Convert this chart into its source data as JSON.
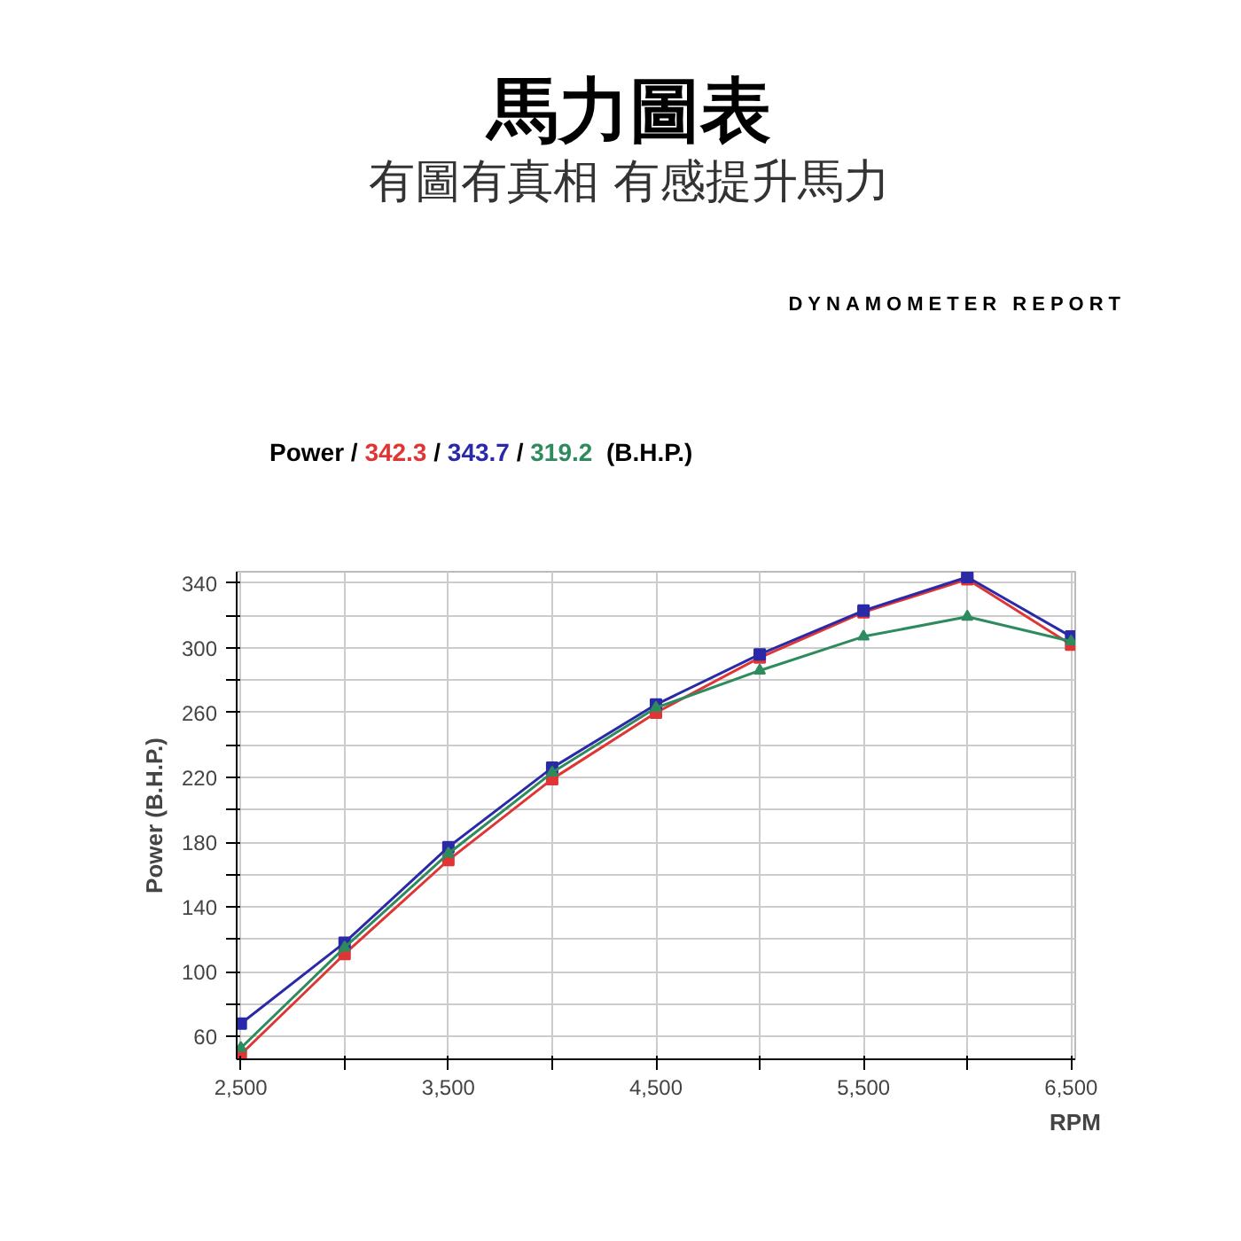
{
  "chart_data": {
    "type": "line",
    "title": "馬力圖表",
    "subtitle": "有圖有真相 有感提升馬力",
    "legend_title": "Power /",
    "legend": "top",
    "annotations": [
      "DYNAMOMETER REPORT",
      "/",
      "/",
      "(B.H.P.)"
    ],
    "xlabel": "RPM",
    "ylabel": "Power (B.H.P.)",
    "x": [
      2500,
      3000,
      3500,
      4000,
      4500,
      5000,
      5500,
      6000,
      6500
    ],
    "xlim": [
      2480,
      6520
    ],
    "ylim": [
      46,
      347
    ],
    "xticks": [
      {
        "value": 2500,
        "label": "2,500"
      },
      {
        "value": 3000,
        "label": null
      },
      {
        "value": 3500,
        "label": "3,500"
      },
      {
        "value": 4000,
        "label": null
      },
      {
        "value": 4500,
        "label": "4,500"
      },
      {
        "value": 5000,
        "label": null
      },
      {
        "value": 5500,
        "label": "5,500"
      },
      {
        "value": 6000,
        "label": null
      },
      {
        "value": 6500,
        "label": "6,500"
      }
    ],
    "yticks": [
      60,
      {
        "value": 80,
        "label": null
      },
      100,
      {
        "value": 120,
        "label": null
      },
      140,
      {
        "value": 160,
        "label": null
      },
      180,
      {
        "value": 200,
        "label": null
      },
      220,
      {
        "value": 240,
        "label": null
      },
      260,
      {
        "value": 280,
        "label": null
      },
      300,
      {
        "value": 320,
        "label": null
      },
      340
    ],
    "grid": true,
    "line_style": "solid",
    "series": [
      {
        "name": "342.3",
        "color": "#e03535",
        "marker": "square",
        "values": [
          49,
          111,
          169,
          219,
          260,
          294,
          322,
          342.3,
          302
        ]
      },
      {
        "name": "343.7",
        "color": "#2a2aa8",
        "marker": "square",
        "values": [
          68,
          118,
          177,
          226,
          265,
          296,
          323,
          343.7,
          307
        ]
      },
      {
        "name": "319.2",
        "color": "#2e8b5e",
        "marker": "triangle",
        "values": [
          53,
          115,
          173,
          223,
          263,
          286,
          307,
          319.2,
          304
        ]
      }
    ]
  }
}
